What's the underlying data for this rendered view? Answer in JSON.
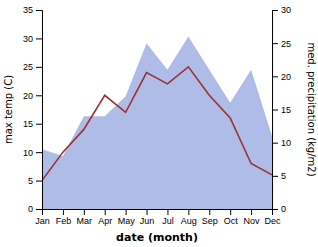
{
  "chart_data": {
    "type": "line",
    "categories": [
      "Jan",
      "Feb",
      "Mar",
      "Apr",
      "May",
      "Jun",
      "Jul",
      "Aug",
      "Sep",
      "Oct",
      "Nov",
      "Dec"
    ],
    "xlabel": "date (month)",
    "ylabel": "max temp (C)",
    "y2label": "med. precipitation (kg/m2)",
    "ylim": [
      0,
      35
    ],
    "yticks": [
      0,
      5,
      10,
      15,
      20,
      25,
      30,
      35
    ],
    "y2lim": [
      0,
      30
    ],
    "y2ticks": [
      0,
      5,
      10,
      15,
      20,
      25,
      30
    ],
    "series": [
      {
        "type": "area",
        "axis": "y2",
        "color": "#b0bce8",
        "values": [
          9,
          8,
          14,
          14,
          17,
          25,
          21,
          26,
          21,
          16,
          21,
          11
        ]
      },
      {
        "type": "line",
        "color": "#993333",
        "values": [
          5.0,
          10.0,
          14.0,
          20.0,
          17.0,
          24.0,
          22.0,
          25.0,
          20.0,
          16.0,
          8.0,
          6.0
        ]
      }
    ]
  }
}
